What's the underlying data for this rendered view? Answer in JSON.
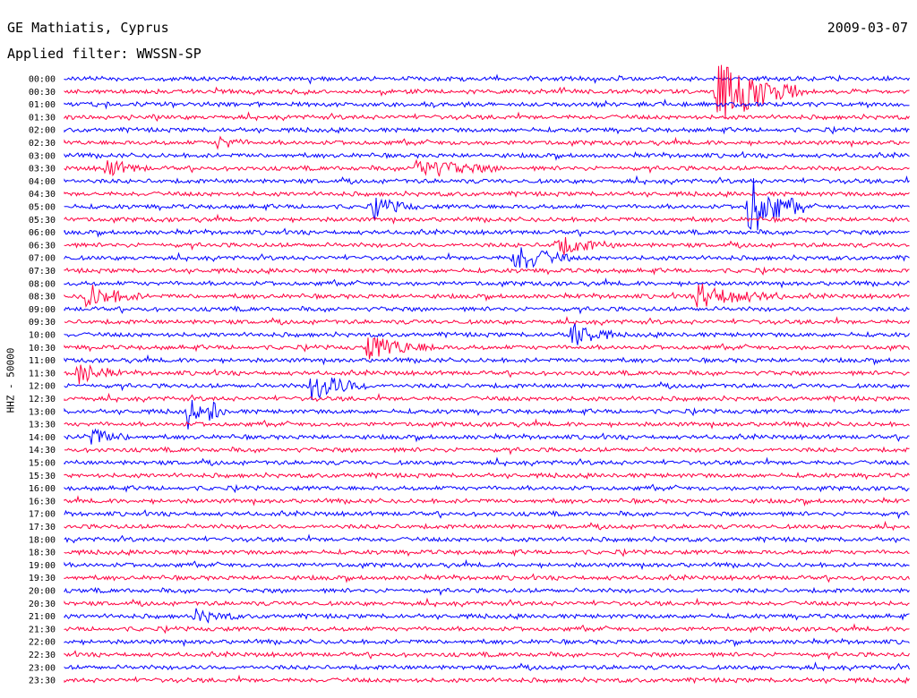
{
  "header": {
    "station": "GE Mathiatis, Cyprus",
    "date": "2009-03-07",
    "filter": "Applied filter: WWSSN-SP"
  },
  "colors": {
    "trace_a": "#0000ff",
    "trace_b": "#ff0040",
    "background": "#ffffff"
  },
  "chart_data": {
    "type": "line",
    "ylabel": "HHZ - 50000",
    "rows": [
      "00:00",
      "00:30",
      "01:00",
      "01:30",
      "02:00",
      "02:30",
      "03:00",
      "03:30",
      "04:00",
      "04:30",
      "05:00",
      "05:30",
      "06:00",
      "06:30",
      "07:00",
      "07:30",
      "08:00",
      "08:30",
      "09:00",
      "09:30",
      "10:00",
      "10:30",
      "11:00",
      "11:30",
      "12:00",
      "12:30",
      "13:00",
      "13:30",
      "14:00",
      "14:30",
      "15:00",
      "15:30",
      "16:00",
      "16:30",
      "17:00",
      "17:30",
      "18:00",
      "18:30",
      "19:00",
      "19:30",
      "20:00",
      "20:30",
      "21:00",
      "21:30",
      "22:00",
      "22:30",
      "23:00",
      "23:30"
    ],
    "row_minutes": 30,
    "events": [
      {
        "row": "00:30",
        "minute": 23.2,
        "amplitude": 1.0,
        "duration_min": 3
      },
      {
        "row": "02:30",
        "minute": 5.5,
        "amplitude": 0.2,
        "duration_min": 1
      },
      {
        "row": "03:30",
        "minute": 1.5,
        "amplitude": 0.25,
        "duration_min": 1.5
      },
      {
        "row": "03:30",
        "minute": 12.5,
        "amplitude": 0.3,
        "duration_min": 3
      },
      {
        "row": "05:00",
        "minute": 24.3,
        "amplitude": 0.9,
        "duration_min": 2
      },
      {
        "row": "05:00",
        "minute": 11.0,
        "amplitude": 0.3,
        "duration_min": 1.5
      },
      {
        "row": "06:30",
        "minute": 17.5,
        "amplitude": 0.3,
        "duration_min": 2
      },
      {
        "row": "07:00",
        "minute": 16.0,
        "amplitude": 0.45,
        "duration_min": 2
      },
      {
        "row": "08:30",
        "minute": 0.8,
        "amplitude": 0.35,
        "duration_min": 2
      },
      {
        "row": "08:30",
        "minute": 22.5,
        "amplitude": 0.35,
        "duration_min": 3
      },
      {
        "row": "10:00",
        "minute": 18.0,
        "amplitude": 0.4,
        "duration_min": 1.5
      },
      {
        "row": "10:30",
        "minute": 10.8,
        "amplitude": 0.35,
        "duration_min": 2.5
      },
      {
        "row": "11:30",
        "minute": 0.5,
        "amplitude": 0.3,
        "duration_min": 1.5
      },
      {
        "row": "12:00",
        "minute": 8.8,
        "amplitude": 0.45,
        "duration_min": 2
      },
      {
        "row": "13:00",
        "minute": 4.4,
        "amplitude": 0.5,
        "duration_min": 0.5
      },
      {
        "row": "13:00",
        "minute": 5.2,
        "amplitude": 0.5,
        "duration_min": 0.5
      },
      {
        "row": "14:00",
        "minute": 0.8,
        "amplitude": 0.3,
        "duration_min": 1.5
      },
      {
        "row": "21:00",
        "minute": 4.7,
        "amplitude": 0.2,
        "duration_min": 1.5
      }
    ]
  }
}
